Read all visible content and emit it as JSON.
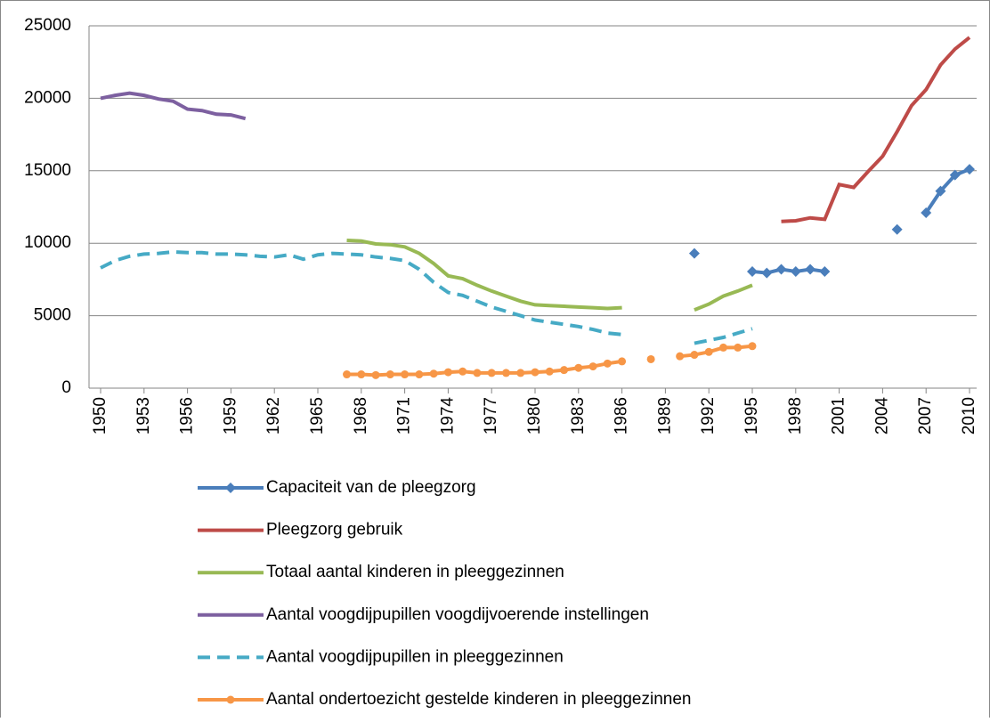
{
  "chart_data": {
    "type": "line",
    "x": [
      1950,
      1951,
      1952,
      1953,
      1954,
      1955,
      1956,
      1957,
      1958,
      1959,
      1960,
      1961,
      1962,
      1963,
      1964,
      1965,
      1966,
      1967,
      1968,
      1969,
      1970,
      1971,
      1972,
      1973,
      1974,
      1975,
      1976,
      1977,
      1978,
      1979,
      1980,
      1981,
      1982,
      1983,
      1984,
      1985,
      1986,
      1987,
      1988,
      1989,
      1990,
      1991,
      1992,
      1993,
      1994,
      1995,
      1996,
      1997,
      1998,
      1999,
      2000,
      2001,
      2002,
      2003,
      2004,
      2005,
      2006,
      2007,
      2008,
      2009,
      2010
    ],
    "xlim": [
      1950,
      2010
    ],
    "xticks": [
      1950,
      1953,
      1956,
      1959,
      1962,
      1965,
      1968,
      1971,
      1974,
      1977,
      1980,
      1983,
      1986,
      1989,
      1992,
      1995,
      1998,
      2001,
      2004,
      2007,
      2010
    ],
    "ylim": [
      0,
      25000
    ],
    "yticks": [
      0,
      5000,
      10000,
      15000,
      20000,
      25000
    ],
    "grid": true,
    "legend": "bottom",
    "series": [
      {
        "name": "Capaciteit van de pleegzorg",
        "color": "#4a7ebb",
        "dash": false,
        "marker": "diamond",
        "values": [
          null,
          null,
          null,
          null,
          null,
          null,
          null,
          null,
          null,
          null,
          null,
          null,
          null,
          null,
          null,
          null,
          null,
          null,
          null,
          null,
          null,
          null,
          null,
          null,
          null,
          null,
          null,
          null,
          null,
          null,
          null,
          null,
          null,
          null,
          null,
          null,
          null,
          null,
          null,
          null,
          null,
          9300,
          null,
          null,
          null,
          8050,
          7950,
          8200,
          8050,
          8200,
          8050,
          null,
          null,
          null,
          null,
          10950,
          null,
          12100,
          13600,
          14700,
          15100
        ]
      },
      {
        "name": "Pleegzorg gebruik",
        "color": "#be4b48",
        "dash": false,
        "marker": null,
        "values": [
          null,
          null,
          null,
          null,
          null,
          null,
          null,
          null,
          null,
          null,
          null,
          null,
          null,
          null,
          null,
          null,
          null,
          null,
          null,
          null,
          null,
          null,
          null,
          null,
          null,
          null,
          null,
          null,
          null,
          null,
          null,
          null,
          null,
          null,
          null,
          null,
          null,
          null,
          null,
          null,
          null,
          null,
          null,
          null,
          null,
          null,
          null,
          11500,
          11550,
          11750,
          11650,
          14050,
          13850,
          14950,
          16000,
          17700,
          19500,
          20600,
          22300,
          23400,
          24200
        ]
      },
      {
        "name": "Totaal aantal kinderen in pleeggezinnen",
        "color": "#98b954",
        "dash": false,
        "marker": null,
        "values": [
          null,
          null,
          null,
          null,
          null,
          null,
          null,
          null,
          null,
          null,
          null,
          null,
          null,
          null,
          null,
          null,
          null,
          10200,
          10150,
          9950,
          9900,
          9750,
          9300,
          8600,
          7750,
          7550,
          7100,
          6700,
          6350,
          6000,
          5750,
          5700,
          5650,
          5600,
          5550,
          5500,
          5550,
          null,
          null,
          null,
          null,
          5400,
          5800,
          6350,
          6700,
          7100,
          null,
          null,
          null,
          null,
          null,
          null,
          null,
          null,
          null,
          null,
          null,
          null,
          null,
          null,
          null
        ]
      },
      {
        "name": "Aantal voogdijpupillen voogdijvoerende instellingen",
        "color": "#7d60a0",
        "dash": false,
        "marker": null,
        "values": [
          20000,
          20200,
          20350,
          20200,
          19950,
          19800,
          19250,
          19150,
          18900,
          18850,
          18600,
          null,
          null,
          null,
          null,
          null,
          null,
          null,
          null,
          null,
          null,
          null,
          null,
          null,
          null,
          null,
          null,
          null,
          null,
          null,
          null,
          null,
          null,
          null,
          null,
          null,
          null,
          null,
          null,
          null,
          null,
          null,
          null,
          null,
          null,
          null,
          null,
          null,
          null,
          null,
          null,
          null,
          null,
          null,
          null,
          null,
          null,
          null,
          null,
          null,
          null
        ]
      },
      {
        "name": "Aantal voogdijpupillen in pleeggezinnen",
        "color": "#46aac5",
        "dash": true,
        "marker": null,
        "values": [
          8300,
          8800,
          9100,
          9250,
          9300,
          9400,
          9350,
          9350,
          9250,
          9250,
          9200,
          9100,
          9050,
          9200,
          8900,
          9200,
          9300,
          9250,
          9200,
          9050,
          8950,
          8800,
          8200,
          7300,
          6600,
          6400,
          6000,
          5600,
          5300,
          5000,
          4700,
          4550,
          4400,
          4250,
          4050,
          3800,
          3700,
          null,
          null,
          null,
          null,
          3100,
          3300,
          3500,
          3800,
          4100,
          null,
          null,
          null,
          null,
          null,
          null,
          null,
          null,
          null,
          null,
          null,
          null,
          null,
          null,
          null
        ]
      },
      {
        "name": "Aantal ondertoezicht gestelde kinderen in pleeggezinnen",
        "color": "#f79646",
        "dash": false,
        "marker": "circle",
        "values": [
          null,
          null,
          null,
          null,
          null,
          null,
          null,
          null,
          null,
          null,
          null,
          null,
          null,
          null,
          null,
          null,
          null,
          950,
          950,
          900,
          950,
          950,
          950,
          1000,
          1100,
          1150,
          1050,
          1050,
          1050,
          1050,
          1100,
          1150,
          1250,
          1400,
          1500,
          1700,
          1850,
          null,
          2000,
          null,
          2200,
          2300,
          2500,
          2800,
          2800,
          2900,
          null,
          null,
          null,
          null,
          null,
          null,
          null,
          null,
          null,
          null,
          null,
          null,
          null,
          null,
          null
        ]
      }
    ]
  }
}
